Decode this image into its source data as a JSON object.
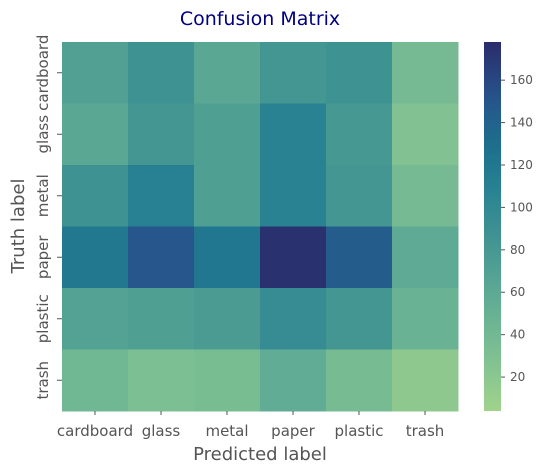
{
  "chart_data": {
    "type": "heatmap",
    "title": "Confusion Matrix",
    "title_color": "#000080",
    "xlabel": "Predicted label",
    "ylabel": "Truth label",
    "x_categories": [
      "cardboard",
      "glass",
      "metal",
      "paper",
      "plastic",
      "trash"
    ],
    "y_categories": [
      "cardboard",
      "glass",
      "metal",
      "paper",
      "plastic",
      "trash"
    ],
    "values": [
      [
        70,
        88,
        62,
        82,
        88,
        38
      ],
      [
        62,
        82,
        72,
        108,
        80,
        28
      ],
      [
        88,
        110,
        72,
        108,
        82,
        38
      ],
      [
        118,
        150,
        120,
        175,
        145,
        58
      ],
      [
        68,
        72,
        76,
        95,
        82,
        48
      ],
      [
        42,
        32,
        35,
        56,
        36,
        18
      ]
    ],
    "colorbar": {
      "vmin": 4,
      "vmax": 178,
      "ticks": [
        20,
        40,
        60,
        80,
        100,
        120,
        140,
        160
      ],
      "colormap": "crest"
    },
    "grid": false,
    "legend": "colorbar-right"
  }
}
